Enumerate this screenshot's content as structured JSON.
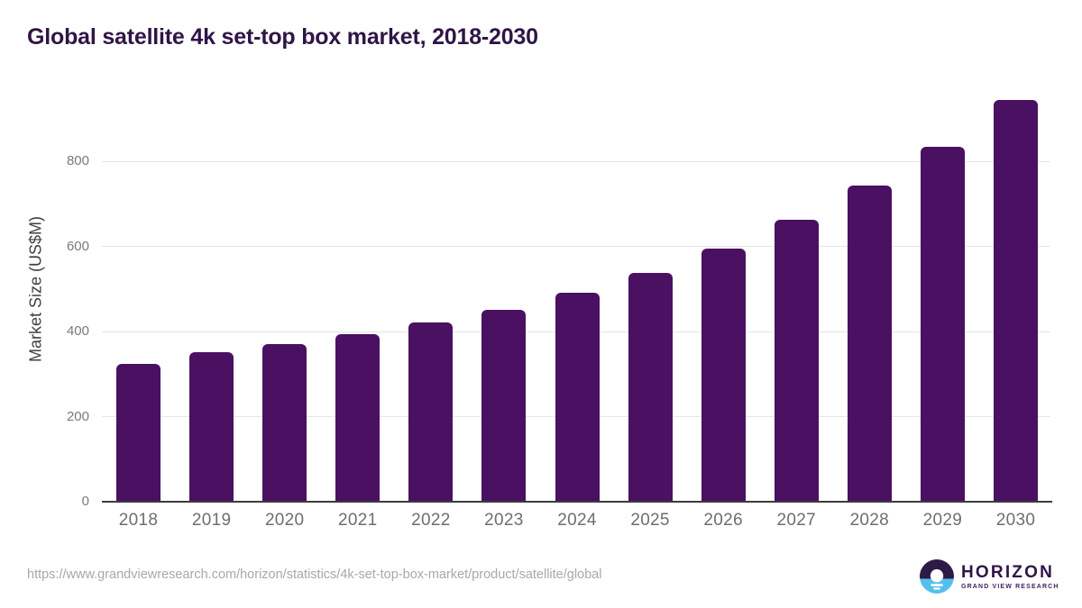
{
  "title": "Global satellite 4k set-top box market, 2018-2030",
  "source_url": "https://www.grandviewresearch.com/horizon/statistics/4k-set-top-box-market/product/satellite/global",
  "logo": {
    "name": "HORIZON",
    "subtitle": "GRAND VIEW RESEARCH"
  },
  "colors": {
    "title": "#2f1547",
    "bar": "#4a1061",
    "grid": "#e5e5e5",
    "axis_line": "#3c3c3c",
    "y_tick": "#7a7a7a",
    "x_tick": "#6e6e6e",
    "y_axis_label": "#3f3f3f",
    "url_text": "#a8a8a8",
    "logo_purple": "#2d1a47",
    "logo_blue": "#55c0ee"
  },
  "chart_data": {
    "type": "bar",
    "title": "Global satellite 4k set-top box market, 2018-2030",
    "categories": [
      "2018",
      "2019",
      "2020",
      "2021",
      "2022",
      "2023",
      "2024",
      "2025",
      "2026",
      "2027",
      "2028",
      "2029",
      "2030"
    ],
    "values": [
      324,
      351,
      370,
      394,
      421,
      452,
      492,
      539,
      596,
      664,
      744,
      835,
      945
    ],
    "xlabel": "",
    "ylabel": "Market Size (US$M)",
    "ylim": [
      0,
      1000
    ],
    "yticks": [
      0,
      200,
      400,
      600,
      800
    ],
    "grid": true,
    "legend": false,
    "bar_color": "#4a1061"
  }
}
